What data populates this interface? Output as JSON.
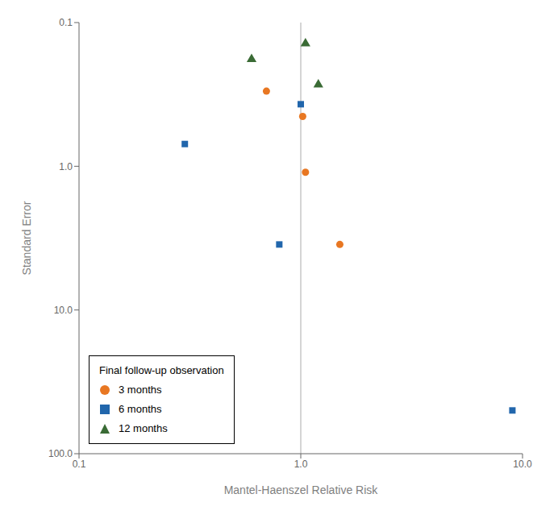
{
  "chart_data": {
    "type": "scatter",
    "xlabel": "Mantel-Haenszel Relative Risk",
    "ylabel": "Standard Error",
    "log": true,
    "xlim": [
      0.1,
      10.0
    ],
    "ylim": [
      100.0,
      0.1
    ],
    "xticks": [
      {
        "value": 0.1,
        "label": "0.1"
      },
      {
        "value": 1.0,
        "label": "1.0"
      },
      {
        "value": 10.0,
        "label": "10.0"
      }
    ],
    "yticks": [
      {
        "value": 0.1,
        "label": "0.1"
      },
      {
        "value": 1.0,
        "label": "1.0"
      },
      {
        "value": 10.0,
        "label": "10.0"
      },
      {
        "value": 100.0,
        "label": "100.0"
      }
    ],
    "reference_line": {
      "x": 1.0,
      "color": "#aaaaaa"
    },
    "series": [
      {
        "name": "3 months",
        "color": "#E87722",
        "marker": "circle",
        "x": [
          0.7,
          1.02,
          1.05,
          1.5
        ],
        "values": [
          0.3,
          0.45,
          1.1,
          3.5
        ]
      },
      {
        "name": "6 months",
        "color": "#2166AC",
        "marker": "square",
        "x": [
          0.3,
          0.8,
          1.0,
          9.0
        ],
        "values": [
          0.7,
          3.5,
          0.37,
          50.0
        ]
      },
      {
        "name": "12 months",
        "color": "#3A6B35",
        "marker": "triangle",
        "x": [
          0.6,
          1.05,
          1.2
        ],
        "values": [
          0.18,
          0.14,
          0.27
        ]
      }
    ],
    "legend": "lower left",
    "legend_title": "Final follow-up observation",
    "grid": false
  }
}
